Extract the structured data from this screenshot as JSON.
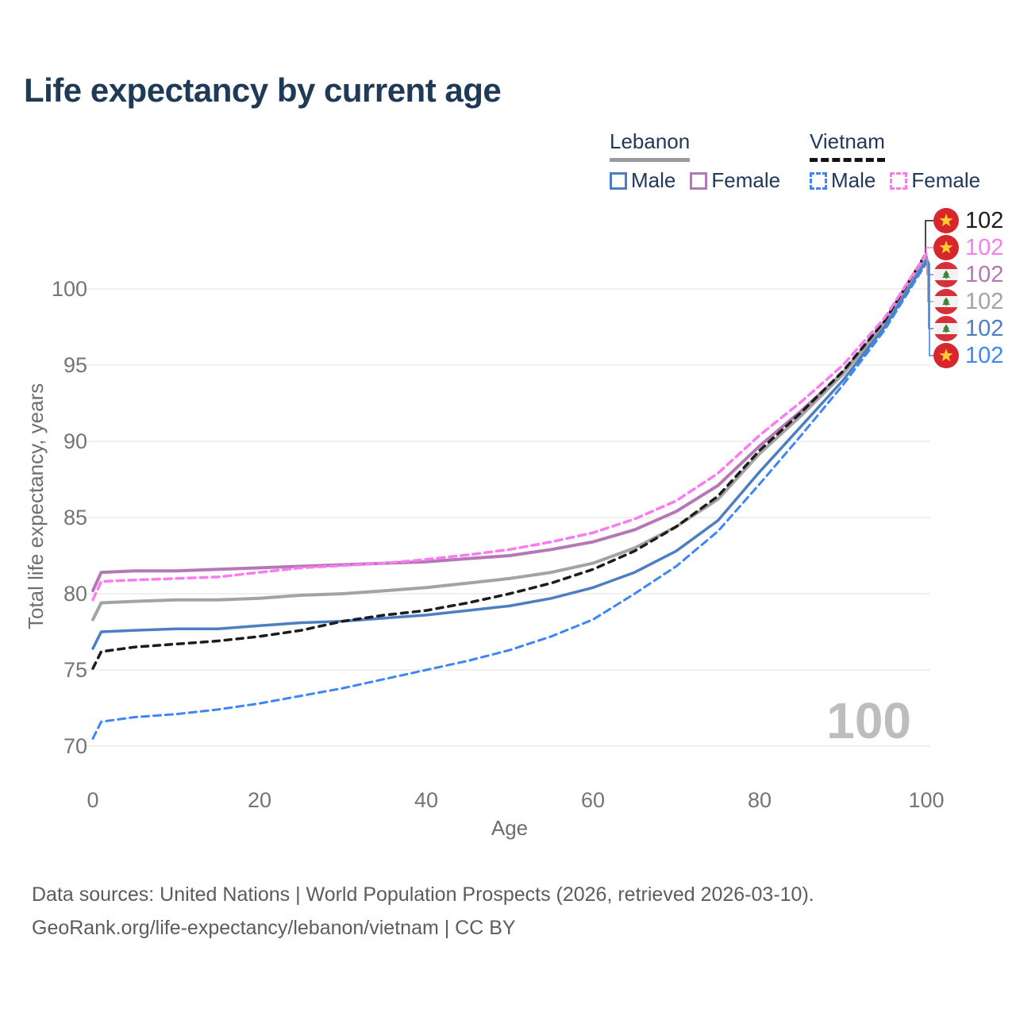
{
  "header": {
    "title": "Life expectancy by current age"
  },
  "legend": {
    "groups": [
      {
        "country": "Lebanon",
        "line_style": "solid",
        "underline_color": "#9c9c9c",
        "items": [
          {
            "label": "Male",
            "color": "#4d7ec2"
          },
          {
            "label": "Female",
            "color": "#b577b5"
          }
        ]
      },
      {
        "country": "Vietnam",
        "line_style": "dashed",
        "underline_color": "#141414",
        "items": [
          {
            "label": "Male",
            "color": "#3e86f5"
          },
          {
            "label": "Female",
            "color": "#fb7cf0"
          }
        ]
      }
    ]
  },
  "chart_data": {
    "type": "line",
    "title": "Life expectancy by current age",
    "xlabel": "Age",
    "ylabel": "Total life expectancy, years",
    "x_ticks": [
      0,
      20,
      40,
      60,
      80,
      100
    ],
    "y_ticks": [
      70,
      75,
      80,
      85,
      90,
      95,
      100
    ],
    "xlim": [
      0,
      100
    ],
    "ylim": [
      69,
      103
    ],
    "grid": "horizontal",
    "gridline_color": "#ececec",
    "axis_text_color": "#747474",
    "watermark_age_label": "100",
    "x": [
      0,
      1,
      5,
      10,
      15,
      20,
      25,
      30,
      35,
      40,
      45,
      50,
      55,
      60,
      65,
      70,
      75,
      80,
      85,
      90,
      95,
      100
    ],
    "series": [
      {
        "id": "lebanon_female",
        "country": "Lebanon",
        "sex": "Female",
        "color": "#b577b5",
        "dash": null,
        "width": 4,
        "values": [
          80.2,
          81.4,
          81.5,
          81.5,
          81.6,
          81.7,
          81.8,
          81.9,
          82.0,
          82.1,
          82.3,
          82.5,
          82.9,
          83.4,
          84.2,
          85.4,
          87.1,
          89.7,
          92.0,
          94.5,
          97.8,
          102.1
        ]
      },
      {
        "id": "lebanon_total",
        "country": "Lebanon",
        "sex": "Total",
        "color": "#a3a3a3",
        "dash": null,
        "width": 4,
        "values": [
          78.3,
          79.4,
          79.5,
          79.6,
          79.6,
          79.7,
          79.9,
          80.0,
          80.2,
          80.4,
          80.7,
          81.0,
          81.4,
          82.0,
          83.0,
          84.4,
          86.2,
          89.2,
          91.7,
          94.4,
          97.7,
          102.0
        ]
      },
      {
        "id": "lebanon_male",
        "country": "Lebanon",
        "sex": "Male",
        "color": "#4d7ec2",
        "dash": null,
        "width": 3.5,
        "values": [
          76.4,
          77.5,
          77.6,
          77.7,
          77.7,
          77.9,
          78.1,
          78.2,
          78.4,
          78.6,
          78.9,
          79.2,
          79.7,
          80.4,
          81.4,
          82.8,
          84.8,
          88.0,
          91.0,
          94.0,
          97.5,
          101.85
        ]
      },
      {
        "id": "vietnam_total",
        "country": "Vietnam",
        "sex": "Total",
        "color": "#1c1c1c",
        "dash": "8 7",
        "width": 3.5,
        "values": [
          75.1,
          76.2,
          76.5,
          76.7,
          76.9,
          77.2,
          77.6,
          78.2,
          78.6,
          78.9,
          79.4,
          80.0,
          80.7,
          81.6,
          82.8,
          84.4,
          86.4,
          89.4,
          91.9,
          94.6,
          97.9,
          102.35
        ]
      },
      {
        "id": "vietnam_female",
        "country": "Vietnam",
        "sex": "Female",
        "color": "#fb7cf0",
        "dash": "9 6",
        "width": 3.5,
        "values": [
          79.6,
          80.8,
          80.9,
          81.0,
          81.1,
          81.4,
          81.7,
          81.85,
          82.0,
          82.25,
          82.55,
          82.9,
          83.4,
          84.0,
          84.9,
          86.1,
          87.9,
          90.4,
          92.6,
          95.0,
          98.1,
          102.3
        ]
      },
      {
        "id": "vietnam_male",
        "country": "Vietnam",
        "sex": "Male",
        "color": "#3e86f5",
        "dash": "9 6",
        "width": 3,
        "values": [
          70.5,
          71.6,
          71.9,
          72.1,
          72.4,
          72.8,
          73.3,
          73.8,
          74.4,
          75.0,
          75.6,
          76.3,
          77.2,
          78.3,
          80.0,
          81.8,
          84.1,
          87.2,
          90.4,
          93.7,
          97.3,
          101.7
        ]
      }
    ],
    "end_labels": [
      {
        "series": "vietnam_total",
        "flag": "vietnam",
        "value_label": "102",
        "color": "#1c1c1c"
      },
      {
        "series": "vietnam_female",
        "flag": "vietnam",
        "value_label": "102",
        "color": "#fb7cf0"
      },
      {
        "series": "lebanon_female",
        "flag": "lebanon",
        "value_label": "102",
        "color": "#b577b5"
      },
      {
        "series": "lebanon_total",
        "flag": "lebanon",
        "value_label": "102",
        "color": "#a3a3a3"
      },
      {
        "series": "lebanon_male",
        "flag": "lebanon",
        "value_label": "102",
        "color": "#4d7ec2"
      },
      {
        "series": "vietnam_male",
        "flag": "vietnam",
        "value_label": "102",
        "color": "#3e86f5"
      }
    ]
  },
  "footer": {
    "line1": "Data sources: United Nations | World Population Prospects (2026, retrieved 2026-03-10).",
    "line2": "GeoRank.org/life-expectancy/lebanon/vietnam | CC BY"
  }
}
